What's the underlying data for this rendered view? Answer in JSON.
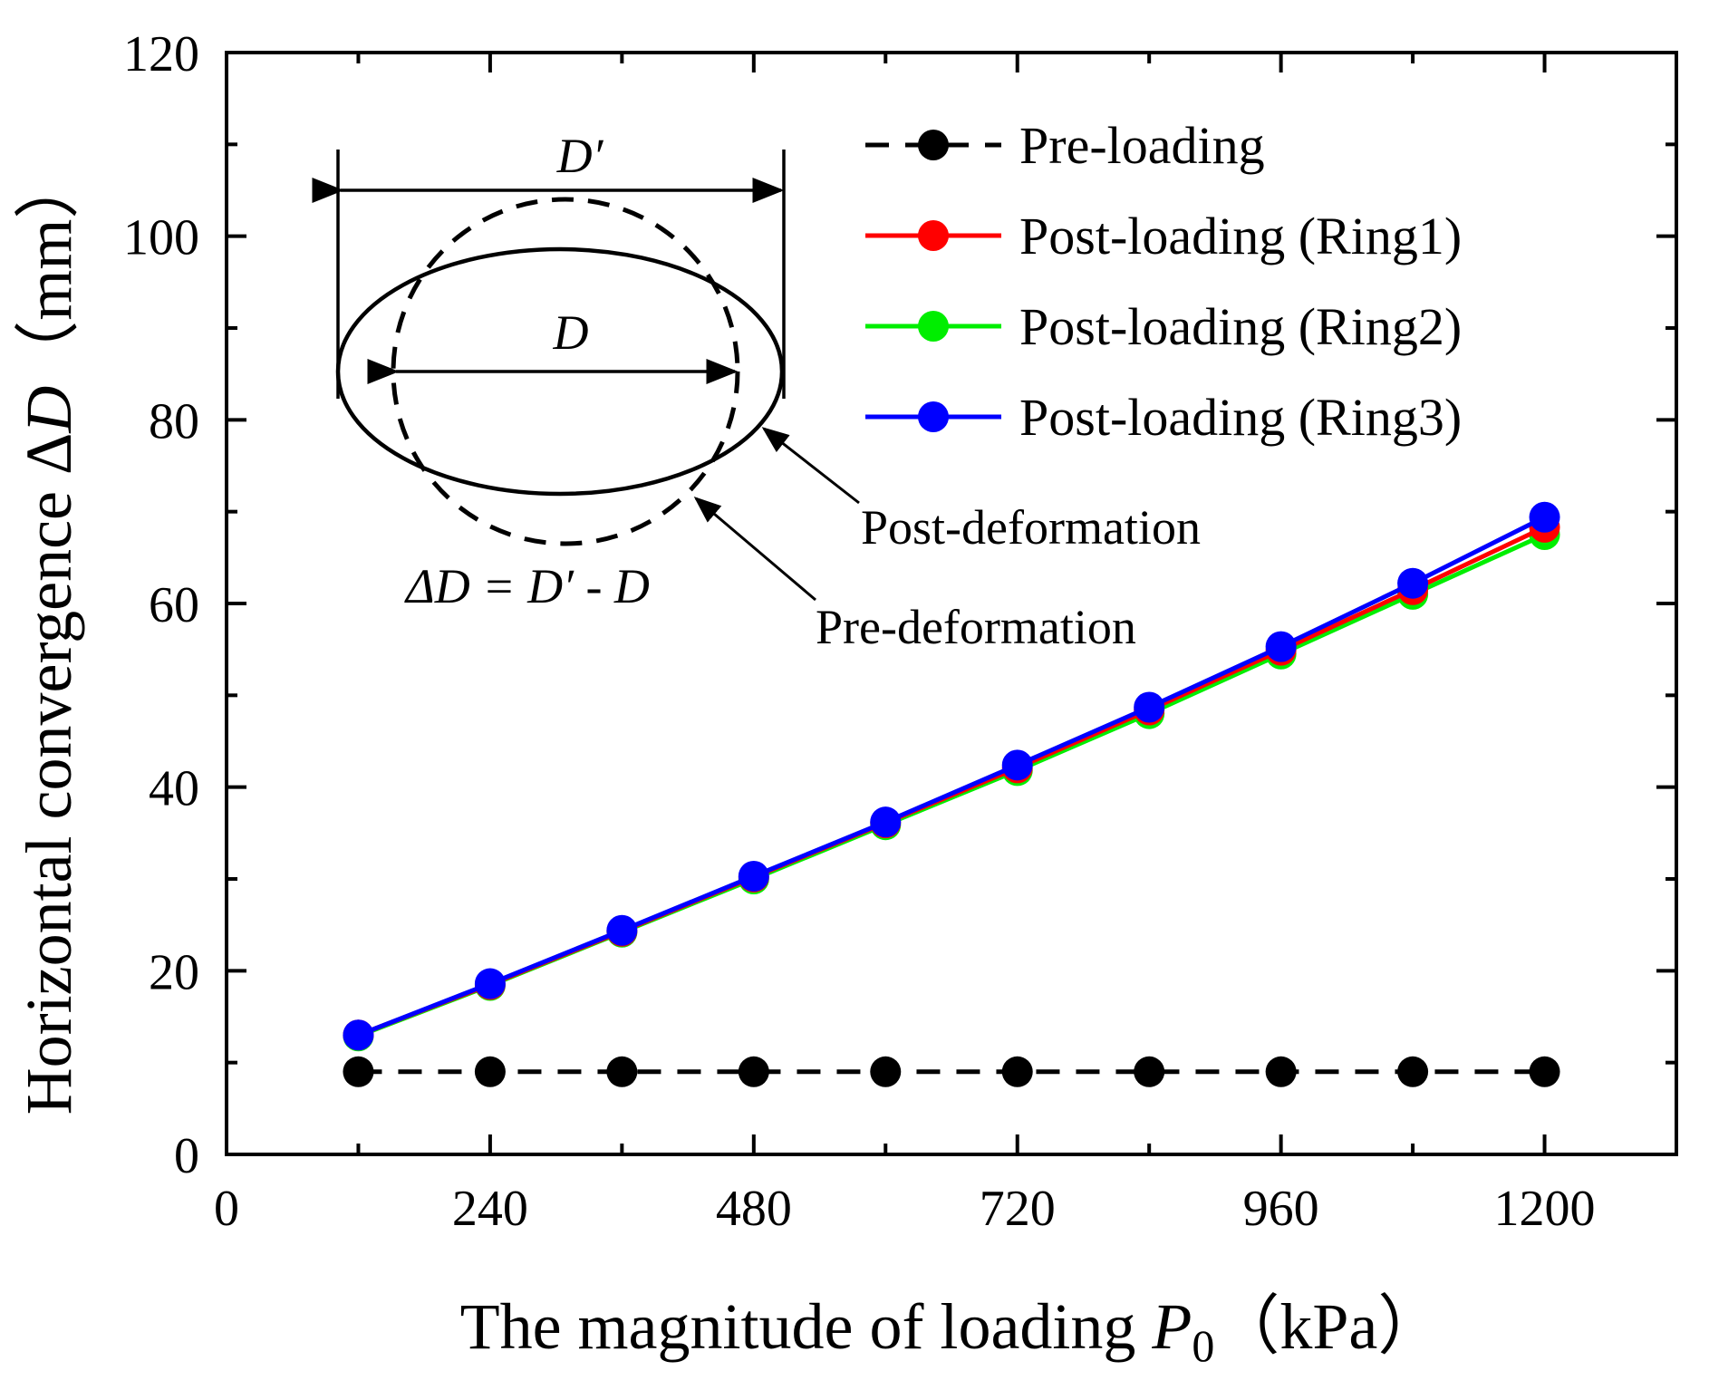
{
  "chart_data": {
    "type": "line",
    "title": "",
    "xlabel": "The magnitude of loading",
    "xlabel_symbol": "P",
    "xlabel_subscript": "0",
    "xlabel_unit": "（kPa）",
    "ylabel": "Horizontal convergence Δ",
    "ylabel_symbol": "D",
    "ylabel_unit": "（mm）",
    "xlim": [
      0,
      1320
    ],
    "ylim": [
      0,
      120
    ],
    "xticks": [
      0,
      240,
      480,
      720,
      960,
      1200
    ],
    "xticks_minor": [
      120,
      360,
      600,
      840,
      1080,
      1320
    ],
    "yticks": [
      0,
      20,
      40,
      60,
      80,
      100,
      120
    ],
    "yticks_minor": [
      10,
      30,
      50,
      70,
      90,
      110
    ],
    "x": [
      120,
      240,
      360,
      480,
      600,
      720,
      840,
      960,
      1080,
      1200
    ],
    "series": [
      {
        "name": "Pre-loading",
        "color": "#000000",
        "style": "dashed",
        "values": [
          9,
          9,
          9,
          9,
          9,
          9,
          9,
          9,
          9,
          9
        ]
      },
      {
        "name": "Post-loading (Ring1)",
        "color": "#ff0000",
        "style": "solid",
        "values": [
          13.0,
          18.5,
          24.3,
          30.2,
          36.1,
          42.1,
          48.4,
          54.9,
          61.5,
          68.3
        ]
      },
      {
        "name": "Post-loading (Ring2)",
        "color": "#00ee00",
        "style": "solid",
        "values": [
          12.9,
          18.4,
          24.2,
          30.0,
          35.9,
          41.8,
          48.0,
          54.5,
          61.0,
          67.5
        ]
      },
      {
        "name": "Post-loading (Ring3)",
        "color": "#0000ff",
        "style": "solid",
        "values": [
          13.0,
          18.6,
          24.4,
          30.3,
          36.2,
          42.4,
          48.7,
          55.3,
          62.2,
          69.4
        ]
      }
    ],
    "legend_position": "top-right",
    "grid": false,
    "inset": {
      "label_outer": "D′",
      "label_inner": "D",
      "equation": "ΔD = D′ - D",
      "post_label": "Post-deformation",
      "pre_label": "Pre-deformation"
    }
  }
}
